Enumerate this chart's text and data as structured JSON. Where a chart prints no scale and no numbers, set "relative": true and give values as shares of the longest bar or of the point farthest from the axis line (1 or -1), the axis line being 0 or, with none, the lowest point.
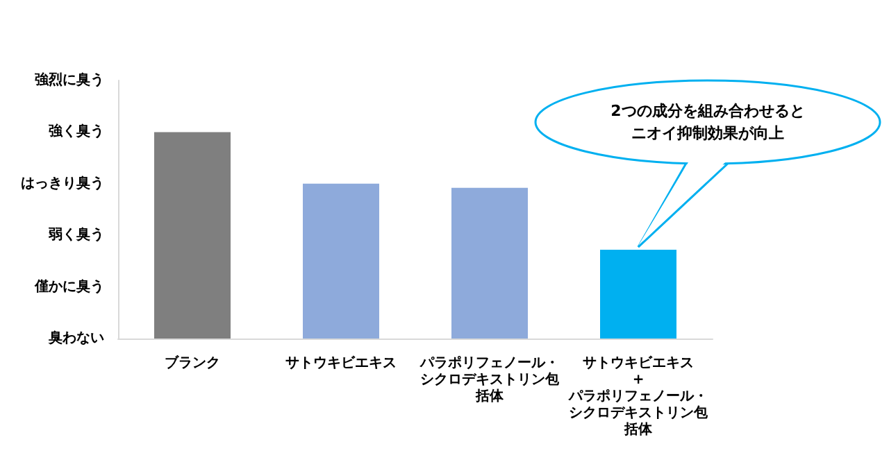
{
  "chart_data": {
    "type": "bar",
    "categories": [
      "ブランク",
      "サトウキビエキス",
      "パラポリフェノール・シクロデキストリン包括体",
      "サトウキビエキス\n+\nパラポリフェノール・シクロデキストリン包括体"
    ],
    "values": [
      1,
      0.75,
      0.73,
      0.43
    ],
    "colors": [
      "#7f7f7f",
      "#8eaadb",
      "#8eaadb",
      "#00b0f0"
    ],
    "relative": true,
    "annotations": [
      "強烈に臭う",
      "強く臭う",
      "はっきり臭う",
      "弱く臭う",
      "僅かに臭う",
      "臭わない",
      "2つの成分を組み合わせるとニオイ抑制効果が向上"
    ],
    "grid": false
  }
}
